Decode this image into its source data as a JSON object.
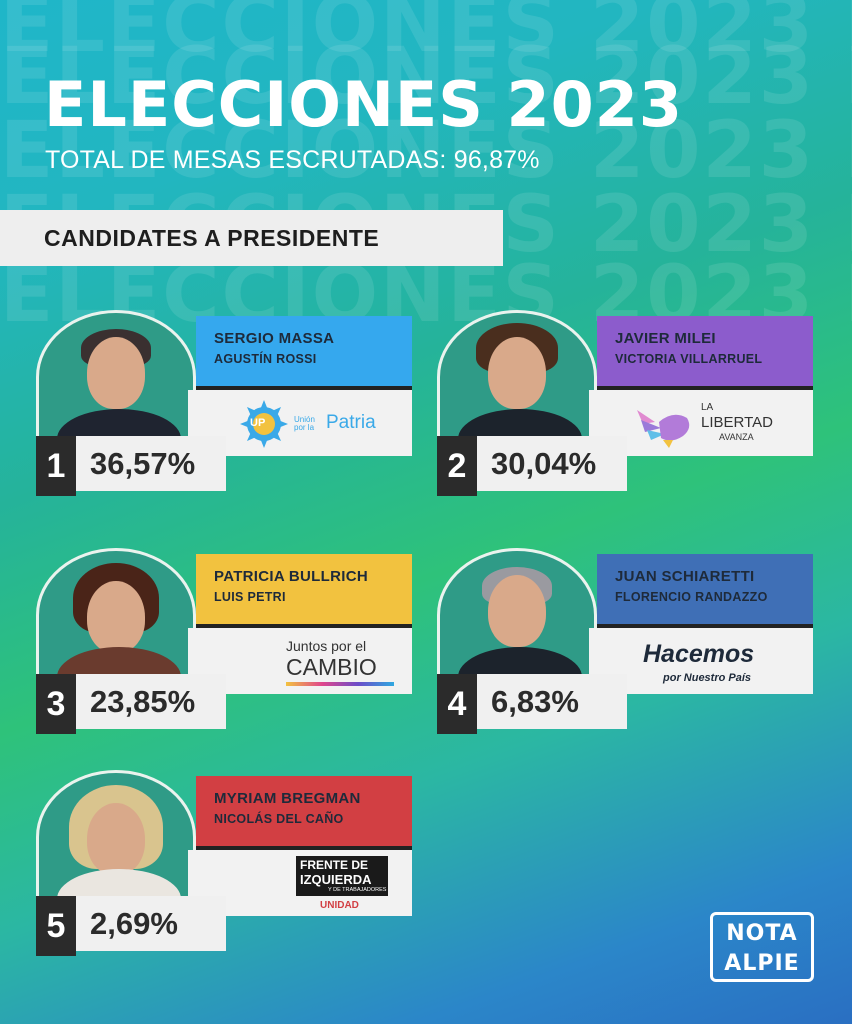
{
  "header": {
    "title": "ELECCIONES 2023",
    "subtitle": "TOTAL DE MESAS ESCRUTADAS: 96,87%",
    "section": "CANDIDATES A PRESIDENTE"
  },
  "background_word": "ELECCIONES 2023 ELECCIONES",
  "candidates": [
    {
      "rank": "1",
      "name": "SERGIO MASSA",
      "vice": "AGUSTÍN ROSSI",
      "percent": "36,57%",
      "color": "#35a8ee",
      "logo": {
        "line1": "Unión por la",
        "line2": "Patria",
        "mark": "UP",
        "icon": "sun-emblem-icon"
      }
    },
    {
      "rank": "2",
      "name": "JAVIER MILEI",
      "vice": "VICTORIA VILLARRUEL",
      "percent": "30,04%",
      "color": "#8c5ccc",
      "logo": {
        "line1": "LA",
        "line2": "LIBERTAD",
        "line3": "AVANZA",
        "icon": "lion-wings-icon"
      }
    },
    {
      "rank": "3",
      "name": "PATRICIA BULLRICH",
      "vice": "LUIS PETRI",
      "percent": "23,85%",
      "color": "#f2c23f",
      "logo": {
        "line1": "Juntos por el",
        "line2": "CAMBIO"
      }
    },
    {
      "rank": "4",
      "name": "JUAN SCHIARETTI",
      "vice": "FLORENCIO RANDAZZO",
      "percent": "6,83%",
      "color": "#3f6fb6",
      "logo": {
        "line1": "Hacemos",
        "line2": "por Nuestro País"
      }
    },
    {
      "rank": "5",
      "name": "MYRIAM BREGMAN",
      "vice": "NICOLÁS DEL CAÑO",
      "percent": "2,69%",
      "color": "#d23f43",
      "logo": {
        "line1": "FRENTE DE",
        "line2": "IZQUIERDA",
        "line3": "Y DE TRABAJADORES",
        "line4": "UNIDAD"
      }
    }
  ],
  "brand": {
    "line1": "NOTA",
    "line2": "ALPIE"
  }
}
